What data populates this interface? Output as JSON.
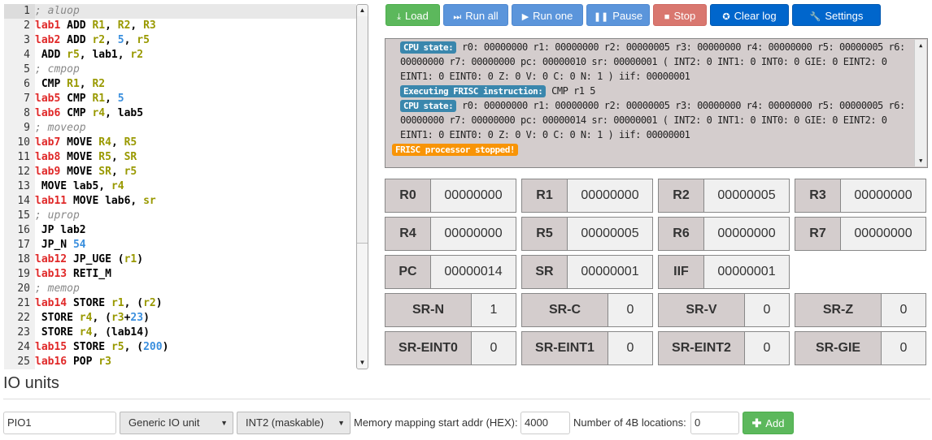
{
  "editor": {
    "lines": [
      [
        [
          "cm",
          "; aluop"
        ]
      ],
      [
        [
          "lab",
          "lab1"
        ],
        [
          "kw",
          " ADD "
        ],
        [
          "reg",
          "R1"
        ],
        [
          "p",
          ", "
        ],
        [
          "reg",
          "R2"
        ],
        [
          "p",
          ", "
        ],
        [
          "reg",
          "R3"
        ]
      ],
      [
        [
          "lab",
          "lab2"
        ],
        [
          "kw",
          " ADD "
        ],
        [
          "reg",
          "r2"
        ],
        [
          "p",
          ", "
        ],
        [
          "num",
          "5"
        ],
        [
          "p",
          ", "
        ],
        [
          "reg",
          "r5"
        ]
      ],
      [
        [
          "kw",
          " ADD "
        ],
        [
          "reg",
          "r5"
        ],
        [
          "p",
          ", lab1, "
        ],
        [
          "reg",
          "r2"
        ]
      ],
      [
        [
          "cm",
          "; cmpop"
        ]
      ],
      [
        [
          "kw",
          " CMP "
        ],
        [
          "reg",
          "R1"
        ],
        [
          "p",
          ", "
        ],
        [
          "reg",
          "R2"
        ]
      ],
      [
        [
          "lab",
          "lab5"
        ],
        [
          "kw",
          " CMP "
        ],
        [
          "reg",
          "R1"
        ],
        [
          "p",
          ", "
        ],
        [
          "num",
          "5"
        ]
      ],
      [
        [
          "lab",
          "lab6"
        ],
        [
          "kw",
          " CMP "
        ],
        [
          "reg",
          "r4"
        ],
        [
          "p",
          ", lab5"
        ]
      ],
      [
        [
          "cm",
          "; moveop"
        ]
      ],
      [
        [
          "lab",
          "lab7"
        ],
        [
          "kw",
          " MOVE "
        ],
        [
          "reg",
          "R4"
        ],
        [
          "p",
          ", "
        ],
        [
          "reg",
          "R5"
        ]
      ],
      [
        [
          "lab",
          "lab8"
        ],
        [
          "kw",
          " MOVE "
        ],
        [
          "reg",
          "R5"
        ],
        [
          "p",
          ", "
        ],
        [
          "reg",
          "SR"
        ]
      ],
      [
        [
          "lab",
          "lab9"
        ],
        [
          "kw",
          " MOVE "
        ],
        [
          "reg",
          "SR"
        ],
        [
          "p",
          ", "
        ],
        [
          "reg",
          "r5"
        ]
      ],
      [
        [
          "kw",
          " MOVE lab5, "
        ],
        [
          "reg",
          "r4"
        ]
      ],
      [
        [
          "lab",
          "lab11"
        ],
        [
          "kw",
          " MOVE lab6, "
        ],
        [
          "reg",
          "sr"
        ]
      ],
      [
        [
          "cm",
          "; uprop"
        ]
      ],
      [
        [
          "kw",
          " JP lab2"
        ]
      ],
      [
        [
          "kw",
          " JP_N "
        ],
        [
          "num",
          "54"
        ]
      ],
      [
        [
          "lab",
          "lab12"
        ],
        [
          "kw",
          " JP_UGE ("
        ],
        [
          "reg",
          "r1"
        ],
        [
          "p",
          ")"
        ]
      ],
      [
        [
          "lab",
          "lab13"
        ],
        [
          "kw",
          " RETI_M"
        ]
      ],
      [
        [
          "cm",
          "; memop"
        ]
      ],
      [
        [
          "lab",
          "lab14"
        ],
        [
          "kw",
          " STORE "
        ],
        [
          "reg",
          "r1"
        ],
        [
          "p",
          ", ("
        ],
        [
          "reg",
          "r2"
        ],
        [
          "p",
          ")"
        ]
      ],
      [
        [
          "kw",
          " STORE "
        ],
        [
          "reg",
          "r4"
        ],
        [
          "p",
          ", ("
        ],
        [
          "reg",
          "r3"
        ],
        [
          "p",
          "+"
        ],
        [
          "num",
          "23"
        ],
        [
          "p",
          ")"
        ]
      ],
      [
        [
          "kw",
          " STORE "
        ],
        [
          "reg",
          "r4"
        ],
        [
          "p",
          ", (lab14)"
        ]
      ],
      [
        [
          "lab",
          "lab15"
        ],
        [
          "kw",
          " STORE "
        ],
        [
          "reg",
          "r5"
        ],
        [
          "p",
          ", ("
        ],
        [
          "num",
          "200"
        ],
        [
          "p",
          ")"
        ]
      ],
      [
        [
          "lab",
          "lab16"
        ],
        [
          "kw",
          " POP "
        ],
        [
          "reg",
          "r3"
        ]
      ]
    ]
  },
  "toolbar": {
    "load": "Load",
    "run_all": "Run all",
    "run_one": "Run one",
    "pause": "Pause",
    "stop": "Stop",
    "clear_log": "Clear log",
    "settings": "Settings"
  },
  "log": {
    "cpu_state_label": "CPU state:",
    "exec_label": "Executing FRISC instruction:",
    "state1": "r0: 00000000 r1: 00000000 r2: 00000005 r3: 00000000 r4: 00000000 r5: 00000005 r6: 00000000 r7: 00000000 pc: 00000010 sr: 00000001 ( INT2: 0 INT1: 0 INT0: 0 GIE: 0 EINT2: 0 EINT1: 0 EINT0: 0 Z: 0 V: 0 C: 0 N: 1 ) iif: 00000001",
    "instruction": "CMP r1 5",
    "state2": "r0: 00000000 r1: 00000000 r2: 00000005 r3: 00000000 r4: 00000000 r5: 00000005 r6: 00000000 r7: 00000000 pc: 00000014 sr: 00000001 ( INT2: 0 INT1: 0 INT0: 0 GIE: 0 EINT2: 0 EINT1: 0 EINT0: 0 Z: 0 V: 0 C: 0 N: 1 ) iif: 00000001",
    "stopped": "FRISC processor stopped!"
  },
  "registers": [
    {
      "name": "R0",
      "value": "00000000"
    },
    {
      "name": "R1",
      "value": "00000000"
    },
    {
      "name": "R2",
      "value": "00000005"
    },
    {
      "name": "R3",
      "value": "00000000"
    },
    {
      "name": "R4",
      "value": "00000000"
    },
    {
      "name": "R5",
      "value": "00000005"
    },
    {
      "name": "R6",
      "value": "00000000"
    },
    {
      "name": "R7",
      "value": "00000000"
    },
    {
      "name": "PC",
      "value": "00000014"
    },
    {
      "name": "SR",
      "value": "00000001"
    },
    {
      "name": "IIF",
      "value": "00000001"
    }
  ],
  "flags": [
    {
      "name": "SR-N",
      "value": "1"
    },
    {
      "name": "SR-C",
      "value": "0"
    },
    {
      "name": "SR-V",
      "value": "0"
    },
    {
      "name": "SR-Z",
      "value": "0"
    },
    {
      "name": "SR-EINT0",
      "value": "0"
    },
    {
      "name": "SR-EINT1",
      "value": "0"
    },
    {
      "name": "SR-EINT2",
      "value": "0"
    },
    {
      "name": "SR-GIE",
      "value": "0"
    }
  ],
  "io": {
    "title": "IO units",
    "name_value": "PIO1",
    "unit_type": "Generic IO unit",
    "interrupt": "INT2 (maskable)",
    "mem_label": "Memory mapping start addr (HEX):",
    "mem_value": "4000",
    "loc_label": "Number of 4B locations:",
    "loc_value": "0",
    "add": "Add"
  },
  "colors": {
    "label": "#e02828",
    "register": "#999900",
    "number": "#3a8fde",
    "comment": "#888888",
    "log_bg": "#d4cdcd",
    "badge_info": "#3a87ad",
    "badge_warn": "#f89406"
  }
}
